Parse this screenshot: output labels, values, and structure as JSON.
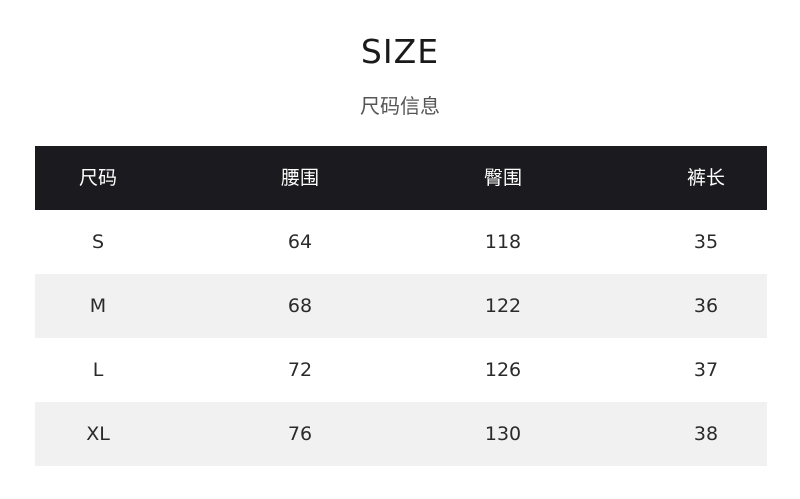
{
  "title": "SIZE",
  "subtitle": "尺码信息",
  "table": {
    "headers": [
      "尺码",
      "腰围",
      "臀围",
      "裤长"
    ],
    "rows": [
      [
        "S",
        "64",
        "118",
        "35"
      ],
      [
        "M",
        "68",
        "122",
        "36"
      ],
      [
        "L",
        "72",
        "126",
        "37"
      ],
      [
        "XL",
        "76",
        "130",
        "38"
      ]
    ]
  },
  "colors": {
    "header_bg": "#1b1a1f",
    "stripe_bg": "#f1f1f1"
  }
}
